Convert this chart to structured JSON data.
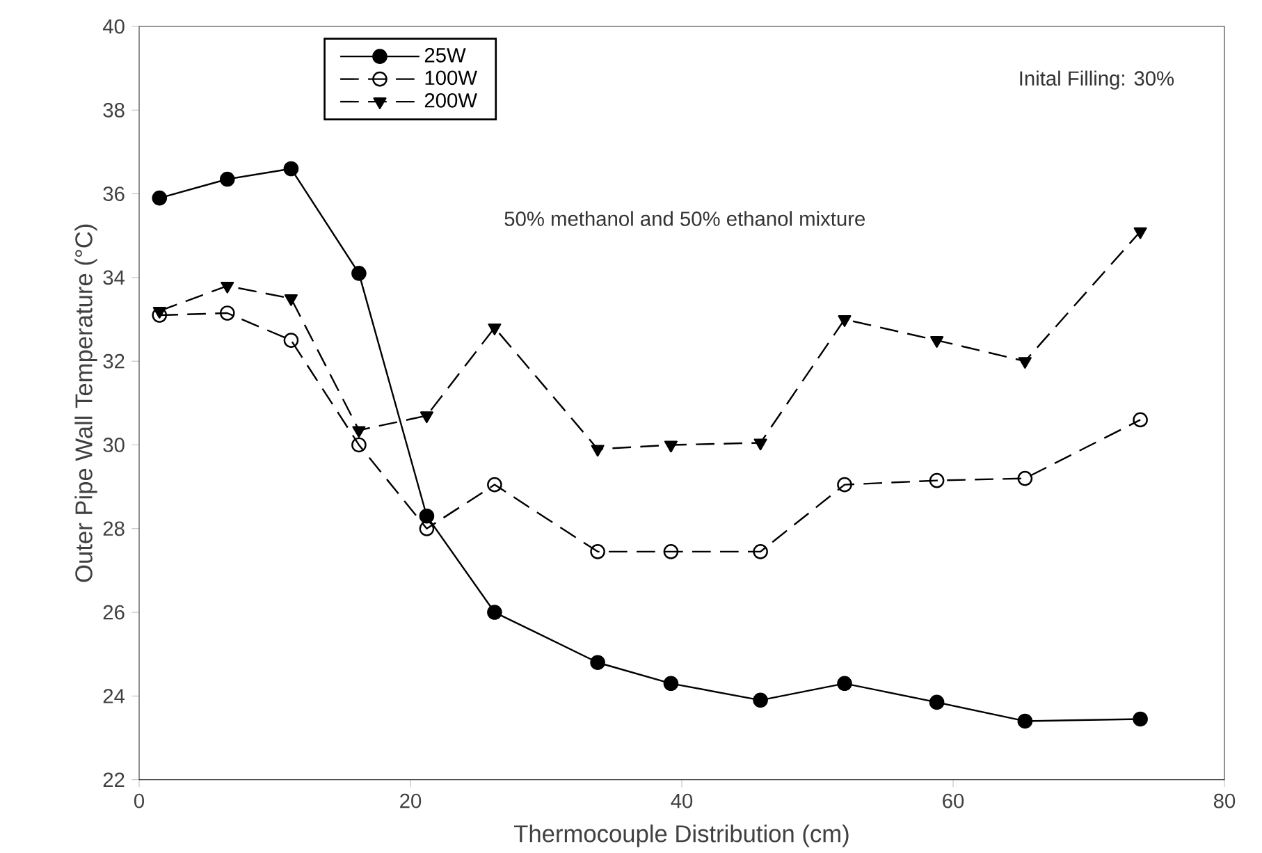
{
  "chart_data": {
    "type": "line",
    "xlabel": "Thermocouple Distribution (cm)",
    "ylabel": "Outer Pipe Wall Temperature (°C)",
    "annotations": [
      "Inital Filling: 30%",
      "50% methanol and 50% ethanol mixture"
    ],
    "x": [
      1.5,
      6.5,
      11.2,
      16.2,
      21.2,
      26.2,
      33.8,
      39.2,
      45.8,
      52,
      58.8,
      65.3,
      73.8
    ],
    "series": [
      {
        "name": "25W",
        "color": "#000000",
        "marker": "circle",
        "line_style": "solid",
        "values": [
          35.9,
          36.35,
          36.6,
          34.1,
          28.3,
          26.0,
          24.8,
          24.3,
          23.9,
          24.3,
          23.85,
          23.4,
          23.45
        ]
      },
      {
        "name": "100W",
        "color": "#000000",
        "marker": "circle-open",
        "line_style": "dashed",
        "values": [
          33.1,
          33.15,
          32.5,
          30.0,
          28.0,
          29.05,
          27.45,
          27.45,
          27.45,
          29.05,
          29.15,
          29.2,
          30.6
        ]
      },
      {
        "name": "200W",
        "color": "#000000",
        "marker": "triangle",
        "line_style": "dashed",
        "values": [
          33.2,
          33.8,
          33.5,
          30.35,
          30.7,
          32.8,
          29.9,
          30.0,
          30.05,
          33.0,
          32.5,
          32.0,
          35.1
        ]
      }
    ],
    "xlim": [
      0,
      80
    ],
    "xticks": [
      0,
      20,
      40,
      60,
      80
    ],
    "ylim": [
      22,
      40
    ],
    "yticks": [
      22,
      24,
      26,
      28,
      30,
      32,
      34,
      36,
      38,
      40
    ],
    "grid": false,
    "legend": "top left"
  }
}
